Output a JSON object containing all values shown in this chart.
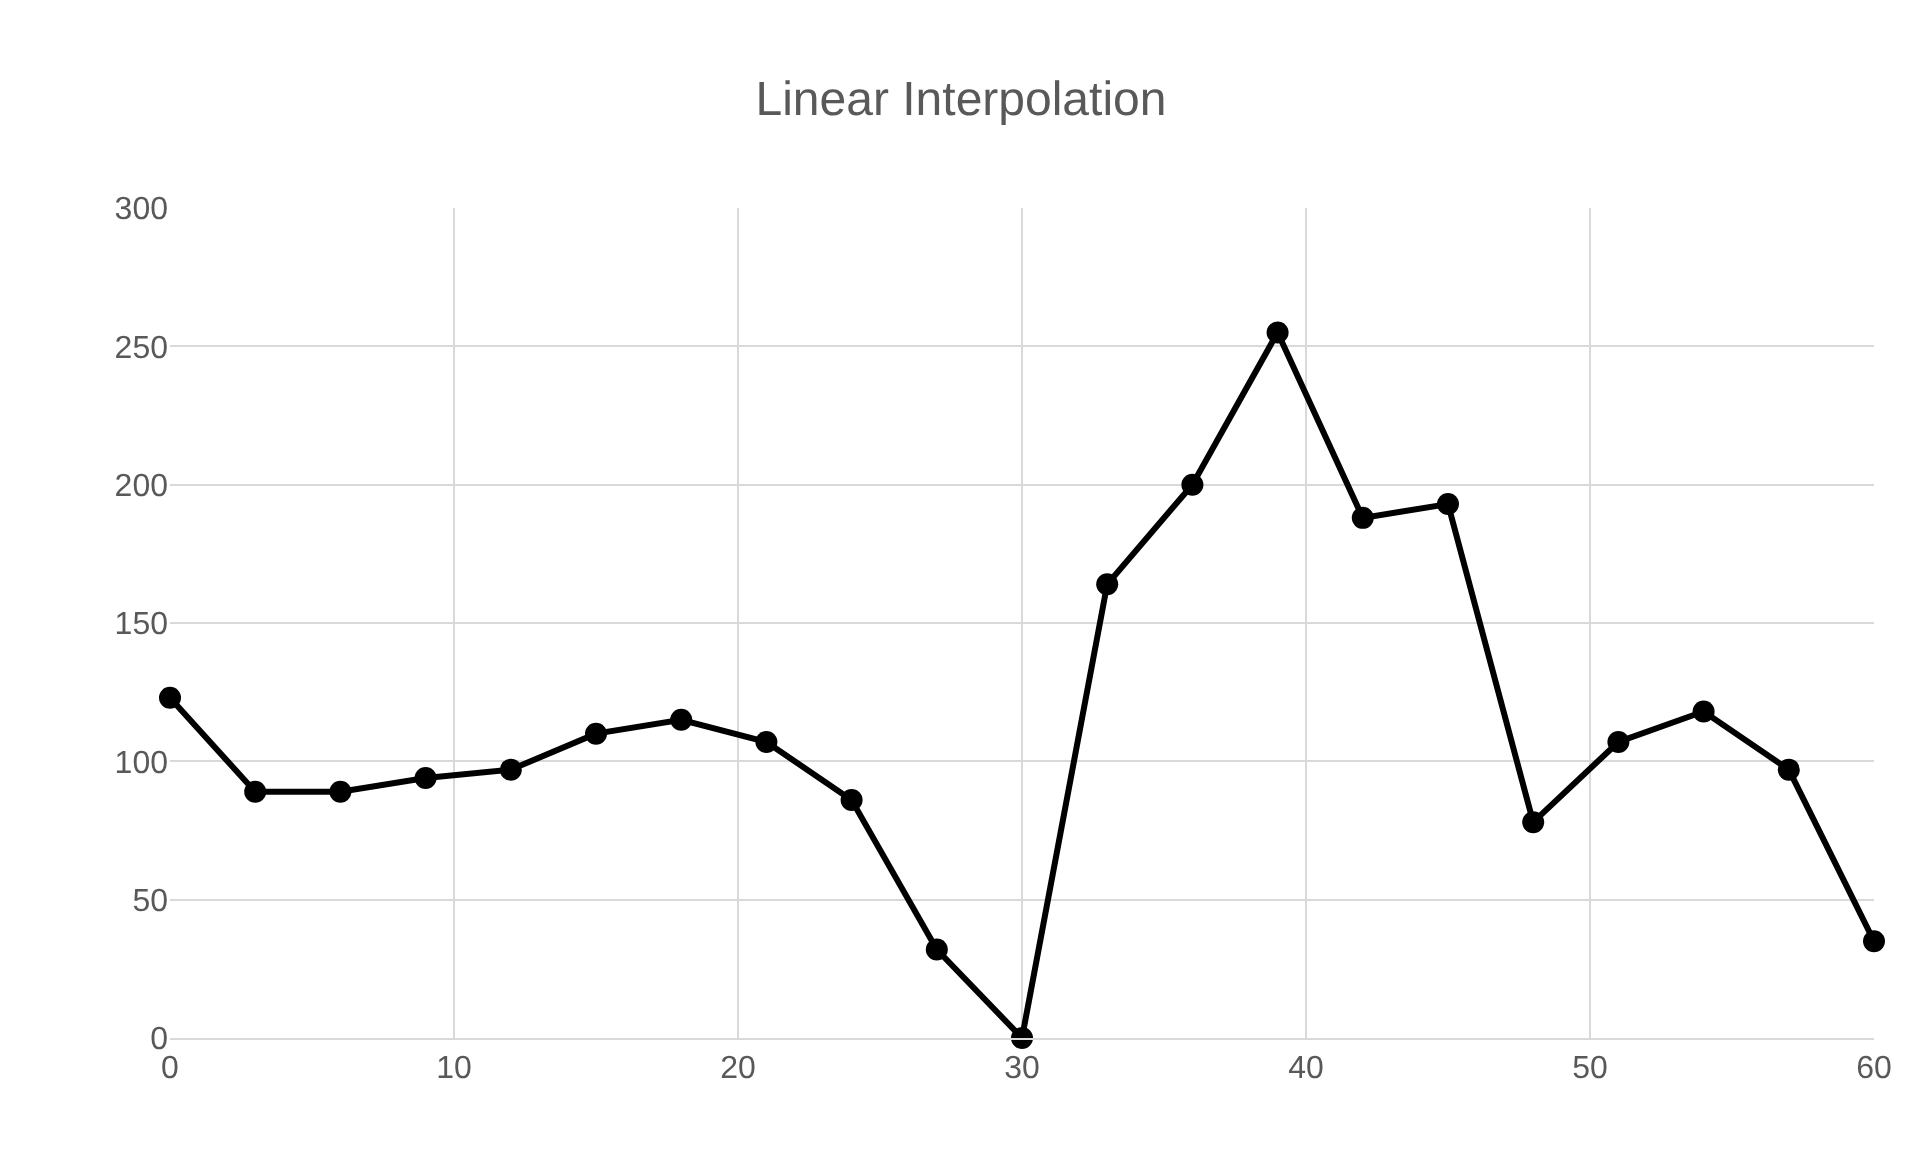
{
  "chart_data": {
    "type": "line",
    "title": "Linear Interpolation",
    "x": [
      0,
      3,
      6,
      9,
      12,
      15,
      18,
      21,
      24,
      27,
      30,
      33,
      36,
      39,
      42,
      45,
      48,
      51,
      54,
      57,
      60
    ],
    "series": [
      {
        "color": "#000000",
        "values": [
          123,
          89,
          89,
          94,
          97,
          110,
          115,
          107,
          86,
          32,
          0,
          164,
          200,
          255,
          188,
          193,
          78,
          107,
          118,
          97,
          35
        ]
      }
    ],
    "xlim": [
      0,
      60
    ],
    "xticks": [
      0,
      10,
      20,
      30,
      40,
      50,
      60
    ],
    "ylim": [
      0,
      300
    ],
    "yticks": [
      0,
      50,
      100,
      150,
      200,
      250,
      300
    ],
    "grid": true,
    "marker": "circle",
    "line_style": "solid"
  }
}
